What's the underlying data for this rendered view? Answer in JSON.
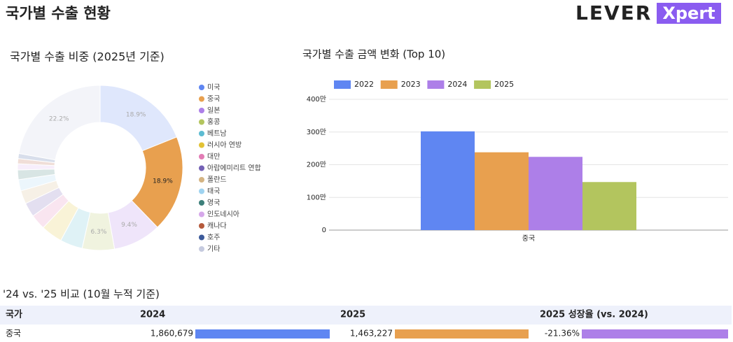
{
  "header": {
    "title": "국가별 수출 현황",
    "logo_main": "LEVER",
    "logo_accent": "Xpert"
  },
  "chart_data": [
    {
      "type": "pie",
      "title": "국가별 수출 비중 (2025년 기준)",
      "categories": [
        "미국",
        "중국",
        "일본",
        "홍콩",
        "베트남",
        "러시아 연방",
        "대만",
        "아랍에미리트 연합",
        "폴란드",
        "태국",
        "영국",
        "인도네시아",
        "캐나다",
        "호주",
        "기타"
      ],
      "values": [
        18.9,
        18.9,
        9.4,
        6.3,
        4.4,
        4.2,
        3.0,
        2.8,
        2.6,
        2.2,
        1.9,
        1.2,
        1.0,
        1.0,
        22.2
      ],
      "value_labels": [
        "18.9%",
        "18.9%",
        "9.4%",
        "6.3%",
        null,
        null,
        null,
        null,
        null,
        null,
        null,
        null,
        null,
        null,
        "22.2%"
      ],
      "colors": [
        "#5f86f2",
        "#e8a04f",
        "#ad7fe8",
        "#b3c55e",
        "#5dbcd2",
        "#e2c235",
        "#e27cb5",
        "#7461b5",
        "#d4b483",
        "#9fd3f0",
        "#3d7f7a",
        "#d6a8ea",
        "#b55a3c",
        "#3c5a9a",
        "#c5cadf"
      ],
      "highlighted": "중국",
      "donut": true
    },
    {
      "type": "bar",
      "title": "국가별 수출 금액 변화 (Top 10)",
      "categories": [
        "중국"
      ],
      "series": [
        {
          "name": "2022",
          "color": "#5f86f2",
          "values": [
            3020000
          ]
        },
        {
          "name": "2023",
          "color": "#e8a04f",
          "values": [
            2380000
          ]
        },
        {
          "name": "2024",
          "color": "#ad7fe8",
          "values": [
            2240000
          ]
        },
        {
          "name": "2025",
          "color": "#b3c55e",
          "values": [
            1470000
          ]
        }
      ],
      "ylim": [
        0,
        4000000
      ],
      "yticks": [
        0,
        {
          "value": 1000000,
          "label": "100만"
        },
        {
          "value": 2000000,
          "label": "200만"
        },
        {
          "value": 3000000,
          "label": "300만"
        },
        {
          "value": 4000000,
          "label": "400만"
        }
      ],
      "grid": true,
      "legend": "top"
    }
  ],
  "table": {
    "title": "'24 vs. '25 비교 (10월 누적 기준)",
    "columns": [
      "국가",
      "2024",
      "2025",
      "2025 성장율 (vs. 2024)"
    ],
    "rows": [
      [
        "중국",
        "1,860,679",
        "1,463,227",
        "-21.36%"
      ]
    ]
  }
}
